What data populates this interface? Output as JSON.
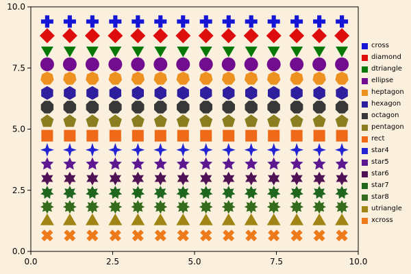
{
  "colors": {
    "background": "#FBF0DE",
    "plot_border": "#000000",
    "tick_text": "#000000"
  },
  "chart_data": {
    "type": "scatter",
    "title": "",
    "xlabel": "",
    "ylabel": "",
    "xlim": [
      0,
      10
    ],
    "ylim": [
      0,
      10
    ],
    "grid": false,
    "legend_position": "right-outside",
    "xticks": [
      0.0,
      2.5,
      5.0,
      7.5,
      10.0
    ],
    "yticks": [
      0.0,
      2.5,
      5.0,
      7.5,
      10.0
    ],
    "xtick_labels": [
      "0.0",
      "2.5",
      "5.0",
      "7.5",
      "10.0"
    ],
    "ytick_labels": [
      "0.0",
      "2.5",
      "5.0",
      "7.5",
      "10.0"
    ],
    "x": [
      0.5,
      1.19,
      1.88,
      2.58,
      3.27,
      3.96,
      4.65,
      5.35,
      6.04,
      6.73,
      7.42,
      8.12,
      8.81,
      9.5
    ],
    "series": [
      {
        "name": "cross",
        "marker": "cross",
        "color": "#1515D6",
        "y": 9.4,
        "size": 9
      },
      {
        "name": "diamond",
        "marker": "diamond",
        "color": "#DE0D0D",
        "y": 8.82,
        "size": 10
      },
      {
        "name": "dtriangle",
        "marker": "dtriangle",
        "color": "#067806",
        "y": 8.23,
        "size": 9
      },
      {
        "name": "ellipse",
        "marker": "ellipse",
        "color": "#720D8F",
        "y": 7.65,
        "size": 10
      },
      {
        "name": "heptagon",
        "marker": "heptagon",
        "color": "#ED9121",
        "y": 7.07,
        "size": 10
      },
      {
        "name": "hexagon",
        "marker": "hexagon",
        "color": "#2E1F9E",
        "y": 6.48,
        "size": 10
      },
      {
        "name": "octagon",
        "marker": "octagon",
        "color": "#383838",
        "y": 5.9,
        "size": 10
      },
      {
        "name": "pentagon",
        "marker": "pentagon",
        "color": "#8B7E20",
        "y": 5.32,
        "size": 10
      },
      {
        "name": "rect",
        "marker": "rect",
        "color": "#EF6A18",
        "y": 4.73,
        "size": 10
      },
      {
        "name": "star4",
        "marker": "star4",
        "color": "#2222D3",
        "y": 4.15,
        "size": 10
      },
      {
        "name": "star5",
        "marker": "star5",
        "color": "#5C1791",
        "y": 3.57,
        "size": 10
      },
      {
        "name": "star6",
        "marker": "star6",
        "color": "#4F1254",
        "y": 2.98,
        "size": 10
      },
      {
        "name": "star7",
        "marker": "star7",
        "color": "#1F661F",
        "y": 2.4,
        "size": 10
      },
      {
        "name": "star8",
        "marker": "star8",
        "color": "#356B1C",
        "y": 1.82,
        "size": 10
      },
      {
        "name": "utriangle",
        "marker": "utriangle",
        "color": "#A08516",
        "y": 1.23,
        "size": 10
      },
      {
        "name": "xcross",
        "marker": "xcross",
        "color": "#ED7B1C",
        "y": 0.65,
        "size": 9
      }
    ]
  }
}
